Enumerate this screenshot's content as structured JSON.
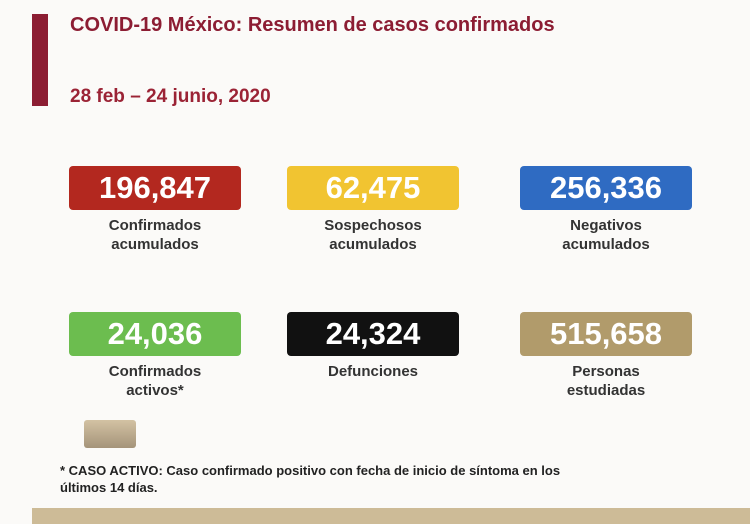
{
  "header": {
    "title": "COVID-19 México: Resumen de casos confirmados",
    "date_range": "28 feb – 24 junio, 2020"
  },
  "cards": [
    {
      "value": "196,847",
      "label": [
        "Confirmados",
        "acumulados"
      ],
      "color": "#b3281f",
      "text_color": "#ffffff"
    },
    {
      "value": "62,475",
      "label": [
        "Sospechosos",
        "acumulados"
      ],
      "color": "#f1c431",
      "text_color": "#ffffff"
    },
    {
      "value": "256,336",
      "label": [
        "Negativos",
        "acumulados"
      ],
      "color": "#2f6bc2",
      "text_color": "#ffffff"
    },
    {
      "value": "24,036",
      "label": [
        "Confirmados",
        "activos*"
      ],
      "color": "#6cbd4f",
      "text_color": "#ffffff"
    },
    {
      "value": "24,324",
      "label": [
        "Defunciones"
      ],
      "color": "#111111",
      "text_color": "#ffffff"
    },
    {
      "value": "515,658",
      "label": [
        "Personas",
        "estudiadas"
      ],
      "color": "#b19b6b",
      "text_color": "#ffffff"
    }
  ],
  "footnote": [
    "* CASO ACTIVO: Caso confirmado positivo con fecha de inicio de síntoma en los",
    "últimos 14 días."
  ]
}
